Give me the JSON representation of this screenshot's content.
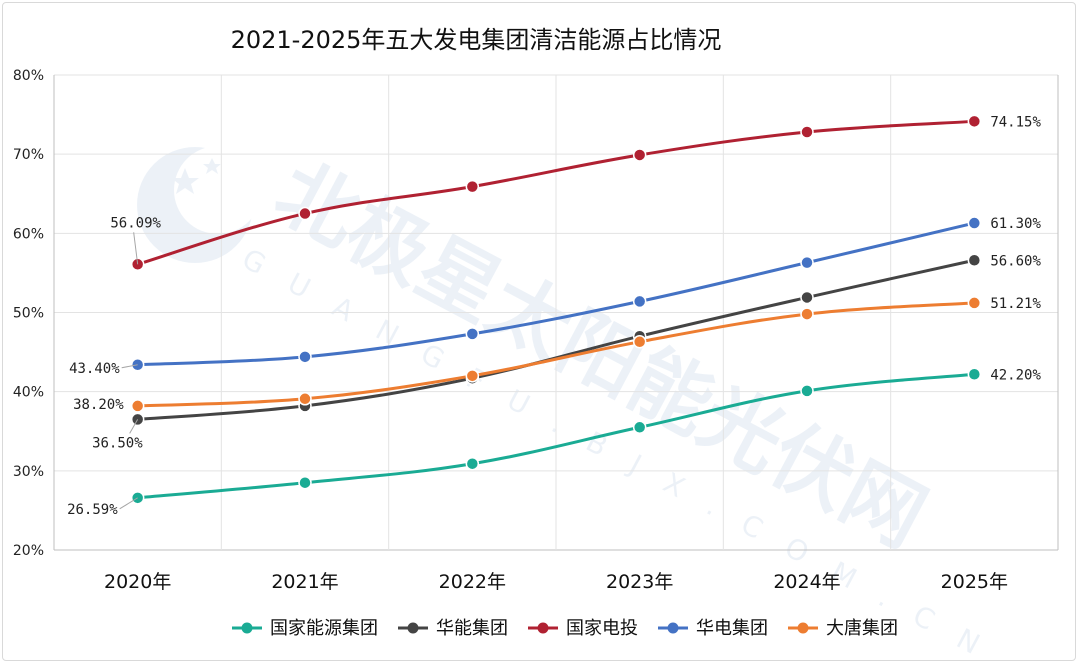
{
  "chart_data": {
    "type": "line",
    "title": "2021-2025年五大发电集团清洁能源占比情况",
    "categories": [
      "2020年",
      "2021年",
      "2022年",
      "2023年",
      "2024年",
      "2025年"
    ],
    "y_ticks": [
      "20%",
      "30%",
      "40%",
      "50%",
      "60%",
      "70%",
      "80%"
    ],
    "ylim": [
      20,
      80
    ],
    "grid": true,
    "legend_position": "bottom",
    "series": [
      {
        "name": "国家能源集团",
        "color": "#1aab94",
        "values": [
          26.59,
          28.5,
          30.9,
          35.5,
          40.1,
          42.2
        ],
        "labels": [
          {
            "index": 0,
            "text": "26.59%"
          },
          {
            "index": 5,
            "text": "42.20%"
          }
        ]
      },
      {
        "name": "华能集团",
        "color": "#444444",
        "values": [
          36.5,
          38.2,
          41.7,
          47.0,
          51.9,
          56.6
        ],
        "labels": [
          {
            "index": 0,
            "text": "36.50%"
          },
          {
            "index": 5,
            "text": "56.60%"
          }
        ]
      },
      {
        "name": "国家电投",
        "color": "#b02132",
        "values": [
          56.09,
          62.5,
          65.9,
          69.9,
          72.8,
          74.15
        ],
        "labels": [
          {
            "index": 0,
            "text": "56.09%"
          },
          {
            "index": 5,
            "text": "74.15%"
          }
        ]
      },
      {
        "name": "华电集团",
        "color": "#4472c4",
        "values": [
          43.4,
          44.4,
          47.3,
          51.4,
          56.3,
          61.3
        ],
        "labels": [
          {
            "index": 0,
            "text": "43.40%"
          },
          {
            "index": 5,
            "text": "61.30%"
          }
        ]
      },
      {
        "name": "大唐集团",
        "color": "#ed7d31",
        "values": [
          38.2,
          39.1,
          42.0,
          46.3,
          49.8,
          51.21
        ],
        "labels": [
          {
            "index": 0,
            "text": "38.20%"
          },
          {
            "index": 5,
            "text": "51.21%"
          }
        ]
      }
    ]
  },
  "watermark": {
    "text": "北极星太阳能光伏网",
    "subtext": "GUANGFU.BJX.COM.CN"
  }
}
